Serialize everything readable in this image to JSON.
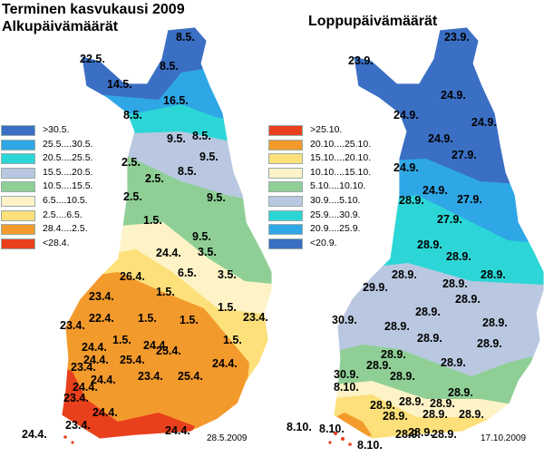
{
  "titles": {
    "main": "Terminen kasvukausi 2009",
    "left": "Alkupäivämäärät",
    "right": "Loppupäivämäärät"
  },
  "dates": {
    "left": "28.5.2009",
    "right": "17.10.2009"
  },
  "legend_left": [
    {
      "label": ">30.5.",
      "color": "#3a6fc4"
    },
    {
      "label": "25.5....30.5.",
      "color": "#2fa7e6"
    },
    {
      "label": "20.5....25.5.",
      "color": "#2cd6d6"
    },
    {
      "label": "15.5....20.5.",
      "color": "#b9c8e0"
    },
    {
      "label": "10.5....15.5.",
      "color": "#8fcf96"
    },
    {
      "label": "6.5....10.5.",
      "color": "#fdf3c6"
    },
    {
      "label": "2.5....6.5.",
      "color": "#fde07a"
    },
    {
      "label": "28.4....2.5.",
      "color": "#f39a2c"
    },
    {
      "label": "<28.4.",
      "color": "#e8401c"
    }
  ],
  "legend_right": [
    {
      "label": ">25.10.",
      "color": "#e8401c"
    },
    {
      "label": "20.10....25.10.",
      "color": "#f39a2c"
    },
    {
      "label": "15.10....20.10.",
      "color": "#fde07a"
    },
    {
      "label": "10.10....15.10.",
      "color": "#fdf3c6"
    },
    {
      "label": "5.10....10.10.",
      "color": "#8fcf96"
    },
    {
      "label": "30.9....5.10.",
      "color": "#b9c8e0"
    },
    {
      "label": "25.9....30.9.",
      "color": "#2cd6d6"
    },
    {
      "label": "20.9....25.9.",
      "color": "#2fa7e6"
    },
    {
      "label": "<20.9.",
      "color": "#3a6fc4"
    }
  ],
  "labels_left": [
    "8.5.",
    "22.5.",
    "8.5.",
    "14.5.",
    "16.5.",
    "8.5.",
    "9.5.",
    "8.5.",
    "9.5.",
    "2.5.",
    "2.5.",
    "8.5.",
    "2.5.",
    "9.5.",
    "1.5.",
    "9.5.",
    "3.5.",
    "24.4.",
    "26.4.",
    "6.5.",
    "3.5.",
    "23.4.",
    "1.5.",
    "22.4.",
    "23.4.",
    "1.5.",
    "1.5.",
    "23.4.",
    "1.5.",
    "1.5.",
    "24.4.",
    "24.4.",
    "25.4.",
    "1.5.",
    "23.4.",
    "24.4.",
    "25.4.",
    "25.4.",
    "24.4.",
    "24.4.",
    "24.4.",
    "23.4.",
    "23.4.",
    "24.4.",
    "23.4.",
    "24.4.",
    "24.4."
  ],
  "labels_right": [
    "23.9.",
    "23.9.",
    "24.9.",
    "24.9.",
    "24.9.",
    "24.9.",
    "27.9.",
    "24.9.",
    "28.9.",
    "24.9.",
    "27.9.",
    "27.9.",
    "28.9.",
    "28.9.",
    "28.9.",
    "28.9.",
    "28.9.",
    "29.9.",
    "28.9.",
    "28.9.",
    "28.9.",
    "30.9.",
    "28.9.",
    "28.9.",
    "28.9.",
    "28.9.",
    "28.9.",
    "28.9.",
    "30.9.",
    "28.9.",
    "28.9.",
    "28.9.",
    "28.9.",
    "28.9.",
    "8.10.",
    "28.9.",
    "28.9.",
    "28.9.",
    "28.9.",
    "8.10.",
    "8.10.",
    "28.9.",
    "28.9.",
    "8.10."
  ]
}
